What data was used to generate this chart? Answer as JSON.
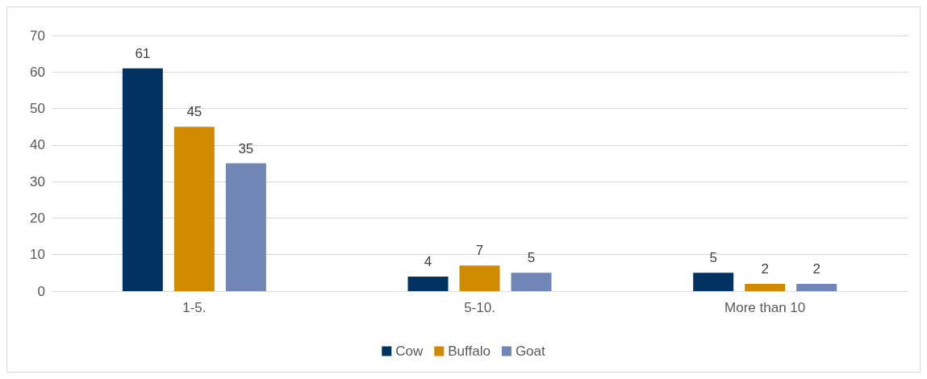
{
  "chart_data": {
    "type": "bar",
    "categories": [
      "1-5.",
      "5-10.",
      "More than 10"
    ],
    "series": [
      {
        "name": "Cow",
        "color": "#003361",
        "values": [
          61,
          4,
          5
        ]
      },
      {
        "name": "Buffalo",
        "color": "#d08a00",
        "values": [
          45,
          7,
          2
        ]
      },
      {
        "name": "Goat",
        "color": "#6f86b6",
        "values": [
          35,
          5,
          2
        ]
      }
    ],
    "ylim": [
      0,
      70
    ],
    "yticks": [
      0,
      10,
      20,
      30,
      40,
      50,
      60,
      70
    ],
    "grid": "y",
    "legend": "bottom",
    "data_labels": true
  }
}
